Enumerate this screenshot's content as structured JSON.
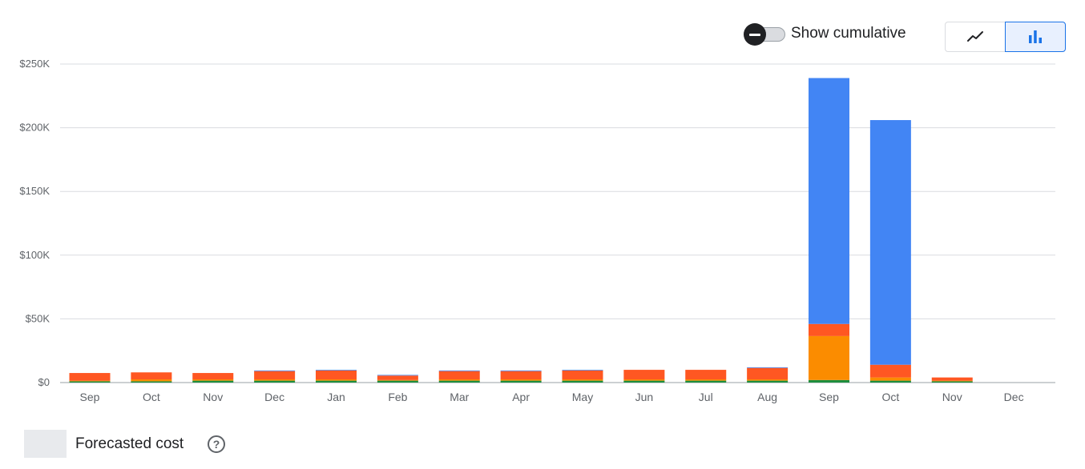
{
  "controls": {
    "cumulative_label": "Show cumulative",
    "cumulative_on": false,
    "line_icon": "line-chart-icon",
    "bar_icon": "bar-chart-icon",
    "selected_view": "bar"
  },
  "legend": {
    "forecast_label": "Forecasted cost",
    "forecast_color": "#e8eaed",
    "help_icon": "help-circle-icon",
    "help_glyph": "?"
  },
  "chart_data": {
    "type": "bar",
    "stacked": true,
    "categories": [
      "Sep",
      "Oct",
      "Nov",
      "Dec",
      "Jan",
      "Feb",
      "Mar",
      "Apr",
      "May",
      "Jun",
      "Jul",
      "Aug",
      "Sep",
      "Oct",
      "Nov",
      "Dec"
    ],
    "y_tick_labels": [
      "$0",
      "$50K",
      "$100K",
      "$150K",
      "$200K",
      "$250K"
    ],
    "y_ticks": [
      0,
      50000,
      100000,
      150000,
      200000,
      250000
    ],
    "ylim": [
      0,
      250000
    ],
    "grid": true,
    "series": [
      {
        "color": "#1e8e3e",
        "values": [
          1000,
          1000,
          1500,
          1500,
          1500,
          1500,
          1500,
          1500,
          1500,
          1500,
          1500,
          1500,
          2000,
          1500,
          1000,
          0
        ]
      },
      {
        "color": "#fb8c00",
        "values": [
          500,
          1500,
          1000,
          1000,
          1000,
          500,
          1000,
          1000,
          1000,
          1000,
          1000,
          1000,
          34500,
          2500,
          500,
          0
        ]
      },
      {
        "color": "#ff5722",
        "values": [
          6000,
          5500,
          5000,
          6500,
          7000,
          3500,
          6500,
          6500,
          7000,
          7500,
          7500,
          9000,
          9500,
          10000,
          2500,
          0
        ]
      },
      {
        "color": "#4285f4",
        "values": [
          0,
          0,
          0,
          500,
          500,
          500,
          500,
          500,
          500,
          0,
          0,
          500,
          193000,
          192000,
          0,
          0
        ]
      }
    ]
  }
}
